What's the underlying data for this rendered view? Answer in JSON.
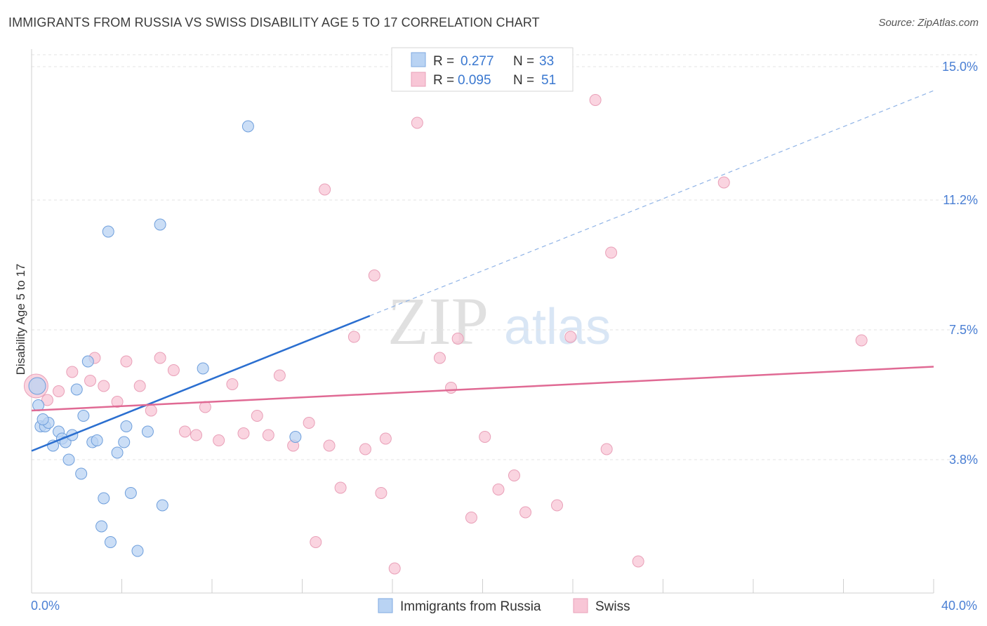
{
  "header": {
    "title": "IMMIGRANTS FROM RUSSIA VS SWISS DISABILITY AGE 5 TO 17 CORRELATION CHART",
    "source": "Source: ZipAtlas.com"
  },
  "watermark": {
    "zip": "ZIP",
    "atlas": "atlas"
  },
  "legend": {
    "rows": [
      {
        "r_label": "R =",
        "r_value": "0.277",
        "n_label": "N =",
        "n_value": "33"
      },
      {
        "r_label": "R =",
        "r_value": "0.095",
        "n_label": "N =",
        "n_value": "51"
      }
    ]
  },
  "bottom_legend": {
    "series1": "Immigrants from Russia",
    "series2": "Swiss"
  },
  "chart_data": {
    "type": "scatter",
    "title": "IMMIGRANTS FROM RUSSIA VS SWISS DISABILITY AGE 5 TO 17 CORRELATION CHART",
    "xlabel": "",
    "ylabel": "Disability Age 5 to 17",
    "xlim": [
      0,
      40
    ],
    "ylim": [
      0,
      15.5
    ],
    "x_tick_labels": [
      "0.0%",
      "40.0%"
    ],
    "y_ticks": [
      3.8,
      7.5,
      11.2,
      15.0
    ],
    "y_tick_labels": [
      "3.8%",
      "7.5%",
      "11.2%",
      "15.0%"
    ],
    "colors": {
      "russia": "#4a86d6",
      "swiss": "#e06a94",
      "russia_fill": "#b9d3f3",
      "swiss_fill": "#f8c6d6"
    },
    "series": [
      {
        "name": "Immigrants from Russia",
        "r": 0.277,
        "n": 33,
        "trend": {
          "x0": 0,
          "y0": 4.05,
          "x1": 15.0,
          "y1": 7.9,
          "dash_to_x": 40
        },
        "points": [
          [
            0.25,
            5.9
          ],
          [
            0.3,
            5.35
          ],
          [
            0.4,
            4.75
          ],
          [
            0.6,
            4.75
          ],
          [
            0.75,
            4.85
          ],
          [
            0.95,
            4.2
          ],
          [
            1.2,
            4.6
          ],
          [
            1.35,
            4.4
          ],
          [
            1.5,
            4.3
          ],
          [
            1.65,
            3.8
          ],
          [
            1.8,
            4.5
          ],
          [
            2.0,
            5.8
          ],
          [
            2.2,
            3.4
          ],
          [
            2.3,
            5.05
          ],
          [
            2.5,
            6.6
          ],
          [
            2.7,
            4.3
          ],
          [
            2.9,
            4.35
          ],
          [
            3.1,
            1.9
          ],
          [
            3.2,
            2.7
          ],
          [
            3.5,
            1.45
          ],
          [
            3.4,
            10.3
          ],
          [
            3.8,
            4.0
          ],
          [
            4.1,
            4.3
          ],
          [
            4.2,
            4.75
          ],
          [
            4.4,
            2.85
          ],
          [
            4.7,
            1.2
          ],
          [
            5.15,
            4.6
          ],
          [
            5.7,
            10.5
          ],
          [
            5.8,
            2.5
          ],
          [
            7.6,
            6.4
          ],
          [
            9.6,
            13.3
          ],
          [
            11.7,
            4.45
          ],
          [
            0.5,
            4.95
          ]
        ]
      },
      {
        "name": "Swiss",
        "r": 0.095,
        "n": 51,
        "trend": {
          "x0": 0,
          "y0": 5.2,
          "x1": 40,
          "y1": 6.45
        },
        "points": [
          [
            0.2,
            5.9
          ],
          [
            0.7,
            5.5
          ],
          [
            1.2,
            5.75
          ],
          [
            1.8,
            6.3
          ],
          [
            2.6,
            6.05
          ],
          [
            2.8,
            6.7
          ],
          [
            3.2,
            5.9
          ],
          [
            3.8,
            5.45
          ],
          [
            4.2,
            6.6
          ],
          [
            4.8,
            5.9
          ],
          [
            5.3,
            5.2
          ],
          [
            5.7,
            6.7
          ],
          [
            6.3,
            6.35
          ],
          [
            6.8,
            4.6
          ],
          [
            7.3,
            4.5
          ],
          [
            7.7,
            5.3
          ],
          [
            8.3,
            4.35
          ],
          [
            8.9,
            5.95
          ],
          [
            9.4,
            4.55
          ],
          [
            10.0,
            5.05
          ],
          [
            10.5,
            4.5
          ],
          [
            11.0,
            6.2
          ],
          [
            11.6,
            4.2
          ],
          [
            12.3,
            4.85
          ],
          [
            12.6,
            1.45
          ],
          [
            13.0,
            11.5
          ],
          [
            13.2,
            4.2
          ],
          [
            13.7,
            3.0
          ],
          [
            14.3,
            7.3
          ],
          [
            14.8,
            4.1
          ],
          [
            15.2,
            9.05
          ],
          [
            15.5,
            2.85
          ],
          [
            15.7,
            4.4
          ],
          [
            16.1,
            0.7
          ],
          [
            17.1,
            13.4
          ],
          [
            18.1,
            6.7
          ],
          [
            18.6,
            5.85
          ],
          [
            18.9,
            7.25
          ],
          [
            19.5,
            2.15
          ],
          [
            20.1,
            4.45
          ],
          [
            20.7,
            2.95
          ],
          [
            21.4,
            3.35
          ],
          [
            21.9,
            2.3
          ],
          [
            23.3,
            2.5
          ],
          [
            23.9,
            7.3
          ],
          [
            25.0,
            14.05
          ],
          [
            25.5,
            4.1
          ],
          [
            25.7,
            9.7
          ],
          [
            26.9,
            0.9
          ],
          [
            30.7,
            11.7
          ],
          [
            36.8,
            7.2
          ]
        ]
      }
    ]
  }
}
